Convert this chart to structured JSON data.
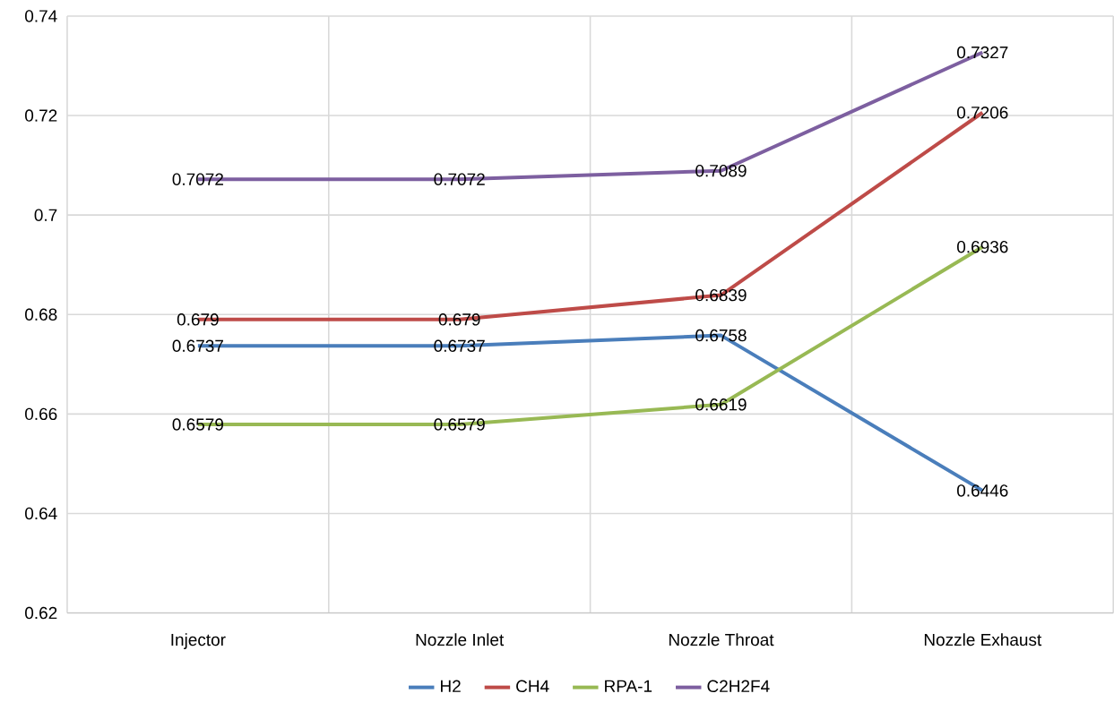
{
  "chart_data": {
    "type": "line",
    "categories": [
      "Injector",
      "Nozzle Inlet",
      "Nozzle Throat",
      "Nozzle Exhaust"
    ],
    "series": [
      {
        "name": "H2",
        "color": "#4a7ebb",
        "values": [
          0.6737,
          0.6737,
          0.6758,
          0.6446
        ]
      },
      {
        "name": "CH4",
        "color": "#be4b48",
        "values": [
          0.679,
          0.679,
          0.6839,
          0.7206
        ]
      },
      {
        "name": "RPA-1",
        "color": "#98b954",
        "values": [
          0.6579,
          0.6579,
          0.6619,
          0.6936
        ]
      },
      {
        "name": "C2H2F4",
        "color": "#7d5fa0",
        "values": [
          0.7072,
          0.7072,
          0.7089,
          0.7327
        ]
      }
    ],
    "ylim": [
      0.62,
      0.74
    ],
    "yticks": [
      0.62,
      0.64,
      0.66,
      0.68,
      0.7,
      0.72,
      0.74
    ],
    "grid": true,
    "legend": "bottom",
    "marker": "none",
    "line_style": "solid",
    "data_labels": true
  }
}
